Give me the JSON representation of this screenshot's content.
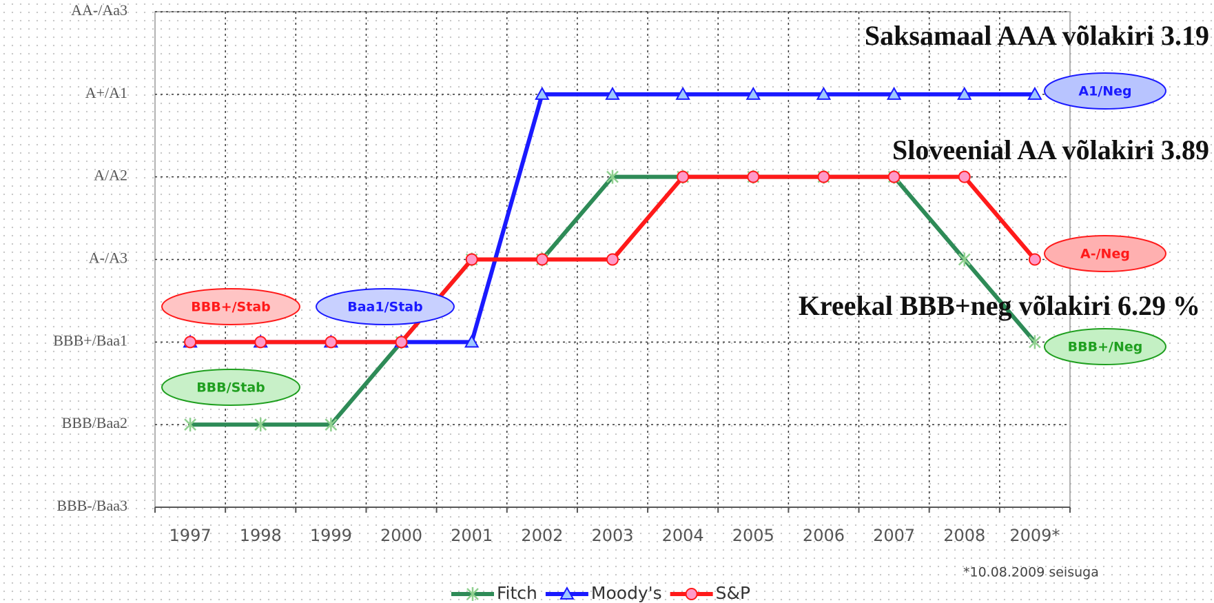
{
  "chart_data": {
    "type": "line",
    "categories": [
      "1997",
      "1998",
      "1999",
      "2000",
      "2001",
      "2002",
      "2003",
      "2004",
      "2005",
      "2006",
      "2007",
      "2008",
      "2009*"
    ],
    "series": [
      {
        "name": "Fitch",
        "color": "#2e8b57",
        "marker": "asterisk",
        "values": [
          2,
          2,
          2,
          3,
          4,
          4,
          5,
          5,
          5,
          5,
          5,
          4,
          3
        ]
      },
      {
        "name": "Moody's",
        "color": "#1a1aff",
        "marker": "triangle",
        "values": [
          3,
          3,
          3,
          3,
          3,
          6,
          6,
          6,
          6,
          6,
          6,
          6,
          6
        ]
      },
      {
        "name": "S&P",
        "color": "#ff1a1a",
        "marker": "circle",
        "values": [
          3,
          3,
          3,
          3,
          4,
          4,
          4,
          5,
          5,
          5,
          5,
          5,
          4
        ]
      }
    ],
    "ylim": [
      1,
      7
    ],
    "yticks": [
      {
        "value": 1,
        "label": "BBB-/Baa3"
      },
      {
        "value": 2,
        "label": "BBB/Baa2"
      },
      {
        "value": 3,
        "label": "BBB+/Baa1"
      },
      {
        "value": 4,
        "label": "A-/A3"
      },
      {
        "value": 5,
        "label": "A/A2"
      },
      {
        "value": 6,
        "label": "A+/A1"
      },
      {
        "value": 7,
        "label": "AA-/Aa3"
      }
    ],
    "grid": true,
    "annotations": [
      "Saksamaal AAA võlakiri 3.19",
      "Sloveenial AA võlakiri 3.89",
      "Kreekal BBB+neg võlakiri 6.29 %"
    ],
    "rating_labels": [
      "A1/Neg",
      "A-/Neg",
      "BBB+/Neg",
      "BBB+/Stab",
      "Baa1/Stab",
      "BBB/Stab"
    ],
    "footnote": "*10.08.2009 seisuga"
  }
}
